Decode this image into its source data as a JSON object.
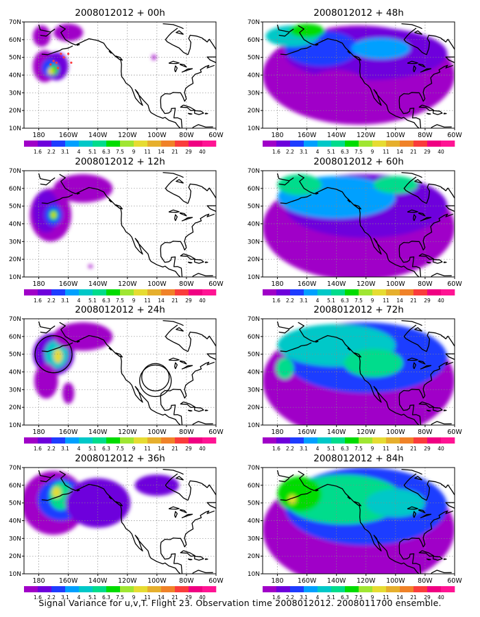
{
  "caption": "Signal Variance for u,v,T. Flight 23. Observation time 2008012012. 2008011700 ensemble.",
  "chart_data": {
    "type": "heatmap",
    "panels": [
      {
        "title": "2008012012 + 00h"
      },
      {
        "title": "2008012012 + 48h"
      },
      {
        "title": "2008012012 + 12h"
      },
      {
        "title": "2008012012 + 60h"
      },
      {
        "title": "2008012012 + 24h"
      },
      {
        "title": "2008012012 + 72h"
      },
      {
        "title": "2008012012 + 36h"
      },
      {
        "title": "2008012012 + 84h"
      }
    ],
    "x_ticks": [
      "180",
      "160W",
      "140W",
      "120W",
      "100W",
      "80W",
      "60W"
    ],
    "y_ticks": [
      "10N",
      "20N",
      "30N",
      "40N",
      "50N",
      "60N",
      "70N"
    ],
    "xlim": [
      -190,
      -60
    ],
    "ylim": [
      10,
      70
    ],
    "grid": true,
    "colorbar": {
      "labels": [
        "1.6",
        "2.2",
        "3.1",
        "4",
        "5.1",
        "6.3",
        "7.5",
        "9",
        "11",
        "14",
        "21",
        "29",
        "40"
      ],
      "colors": [
        "#a000c8",
        "#6e00dc",
        "#1e3cff",
        "#00a0ff",
        "#00c8c8",
        "#00dc8c",
        "#00dc00",
        "#a0e632",
        "#e6dc32",
        "#e6af2d",
        "#f08228",
        "#fa3c3c",
        "#f00082",
        "#ff1493"
      ]
    }
  }
}
